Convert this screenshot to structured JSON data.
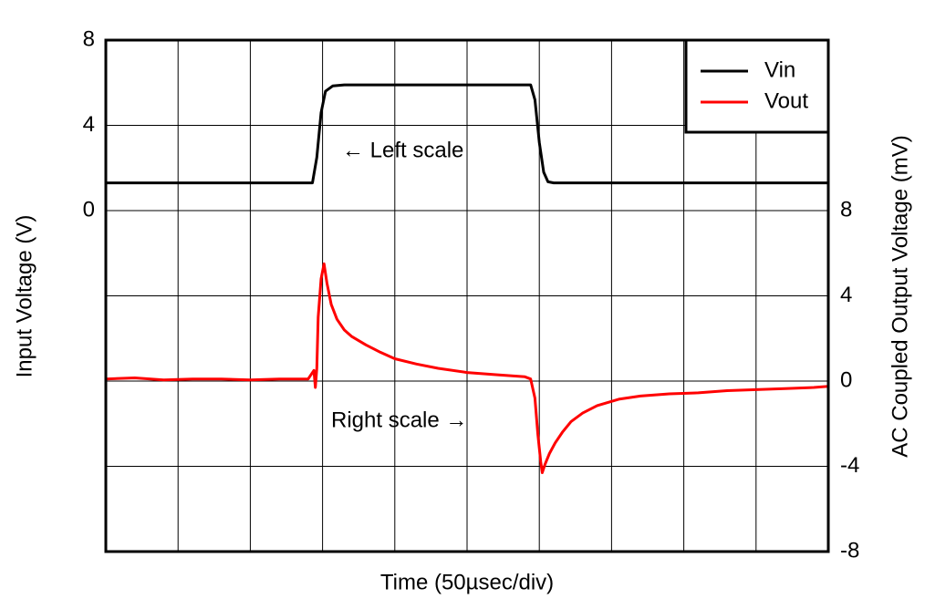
{
  "chart_data": {
    "type": "line",
    "x_label": "Time (50µsec/div)",
    "y_label": "Input Voltage (V)",
    "y2_label": "AC Coupled Output Voltage (mV)",
    "annotations": [
      "← Left scale",
      "Right scale →"
    ],
    "xlim": [
      0,
      500
    ],
    "xticks": [
      0,
      50,
      100,
      150,
      200,
      250,
      300,
      350,
      400,
      450,
      500
    ],
    "ylim": [
      -16,
      8
    ],
    "yticks": [
      0,
      4,
      8
    ],
    "y2lim": [
      -8,
      16
    ],
    "y2ticks": [
      -8,
      -4,
      0,
      4,
      8
    ],
    "grid": true,
    "legend": "upper right",
    "series": [
      {
        "name": "Vin",
        "color": "#000000",
        "axis": "y",
        "x": [
          0,
          143,
          146,
          149,
          152,
          157,
          165,
          294,
          297,
          300,
          303,
          306,
          310,
          500
        ],
        "values": [
          1.3,
          1.3,
          2.5,
          4.6,
          5.6,
          5.85,
          5.9,
          5.9,
          5.2,
          3.2,
          1.8,
          1.35,
          1.3,
          1.3
        ]
      },
      {
        "name": "Vout",
        "color": "#ff0000",
        "axis": "y2",
        "x": [
          0,
          20,
          40,
          60,
          80,
          100,
          120,
          140,
          144,
          145,
          146,
          147,
          149,
          151,
          153,
          156,
          160,
          165,
          170,
          180,
          190,
          200,
          215,
          230,
          250,
          270,
          290,
          294,
          297,
          299,
          301,
          302,
          304,
          307,
          311,
          316,
          322,
          330,
          340,
          355,
          370,
          390,
          410,
          430,
          450,
          470,
          490,
          500
        ],
        "values": [
          0.1,
          0.15,
          0.05,
          0.1,
          0.1,
          0.05,
          0.1,
          0.1,
          0.5,
          -0.3,
          0.6,
          3.0,
          4.8,
          5.5,
          4.6,
          3.6,
          2.9,
          2.4,
          2.1,
          1.7,
          1.35,
          1.05,
          0.8,
          0.6,
          0.4,
          0.3,
          0.2,
          0.1,
          -0.8,
          -2.5,
          -3.8,
          -4.3,
          -3.9,
          -3.4,
          -2.9,
          -2.4,
          -1.9,
          -1.5,
          -1.15,
          -0.85,
          -0.7,
          -0.6,
          -0.55,
          -0.45,
          -0.4,
          -0.35,
          -0.3,
          -0.25
        ]
      }
    ]
  }
}
